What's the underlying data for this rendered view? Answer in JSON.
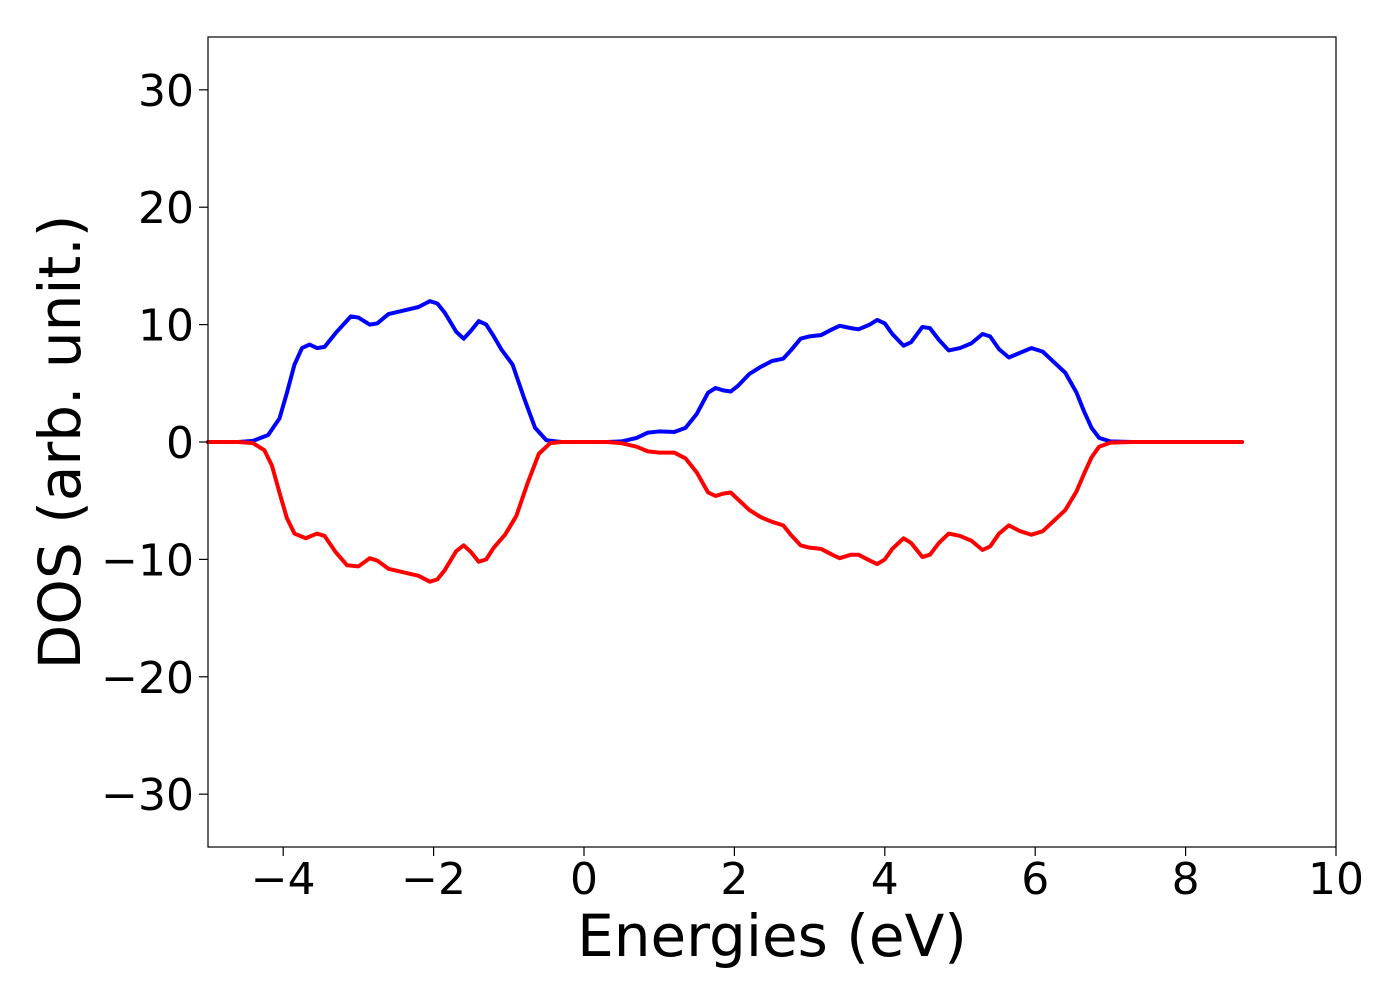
{
  "chart_data": {
    "type": "line",
    "xlabel": "Energies (eV)",
    "ylabel": "DOS (arb. unit.)",
    "xlim": [
      -5,
      10
    ],
    "ylim": [
      -34.5,
      34.5
    ],
    "xticks": [
      -4,
      -2,
      0,
      2,
      4,
      6,
      8,
      10
    ],
    "xtick_labels": [
      "−4",
      "−2",
      "0",
      "2",
      "4",
      "6",
      "8",
      "10"
    ],
    "yticks": [
      30,
      20,
      10,
      0,
      -10,
      -20,
      -30
    ],
    "ytick_labels": [
      "30",
      "20",
      "10",
      "0",
      "−10",
      "−20",
      "−30"
    ],
    "grid": false,
    "legend": "none",
    "series": [
      {
        "color": "#0000ff",
        "points": [
          [
            -5.0,
            0
          ],
          [
            -4.6,
            0
          ],
          [
            -4.4,
            0.1
          ],
          [
            -4.2,
            0.6
          ],
          [
            -4.05,
            2.0
          ],
          [
            -3.95,
            4.2
          ],
          [
            -3.85,
            6.6
          ],
          [
            -3.75,
            8.0
          ],
          [
            -3.65,
            8.3
          ],
          [
            -3.55,
            8.0
          ],
          [
            -3.45,
            8.1
          ],
          [
            -3.3,
            9.3
          ],
          [
            -3.1,
            10.7
          ],
          [
            -3.0,
            10.6
          ],
          [
            -2.85,
            10.0
          ],
          [
            -2.75,
            10.1
          ],
          [
            -2.6,
            10.9
          ],
          [
            -2.4,
            11.2
          ],
          [
            -2.2,
            11.5
          ],
          [
            -2.05,
            12.0
          ],
          [
            -1.95,
            11.8
          ],
          [
            -1.85,
            11.0
          ],
          [
            -1.7,
            9.4
          ],
          [
            -1.6,
            8.8
          ],
          [
            -1.5,
            9.5
          ],
          [
            -1.4,
            10.3
          ],
          [
            -1.3,
            10.0
          ],
          [
            -1.2,
            9.0
          ],
          [
            -1.1,
            7.9
          ],
          [
            -0.95,
            6.6
          ],
          [
            -0.8,
            3.8
          ],
          [
            -0.65,
            1.2
          ],
          [
            -0.5,
            0.15
          ],
          [
            -0.3,
            0
          ],
          [
            0.3,
            0
          ],
          [
            0.5,
            0.05
          ],
          [
            0.7,
            0.35
          ],
          [
            0.85,
            0.8
          ],
          [
            1.0,
            0.9
          ],
          [
            1.2,
            0.85
          ],
          [
            1.35,
            1.2
          ],
          [
            1.5,
            2.4
          ],
          [
            1.65,
            4.2
          ],
          [
            1.75,
            4.6
          ],
          [
            1.85,
            4.4
          ],
          [
            1.95,
            4.3
          ],
          [
            2.05,
            4.8
          ],
          [
            2.2,
            5.8
          ],
          [
            2.35,
            6.4
          ],
          [
            2.5,
            6.9
          ],
          [
            2.65,
            7.1
          ],
          [
            2.75,
            7.8
          ],
          [
            2.88,
            8.8
          ],
          [
            3.0,
            9.0
          ],
          [
            3.15,
            9.1
          ],
          [
            3.3,
            9.6
          ],
          [
            3.4,
            9.9
          ],
          [
            3.55,
            9.7
          ],
          [
            3.65,
            9.6
          ],
          [
            3.8,
            10.0
          ],
          [
            3.9,
            10.4
          ],
          [
            4.0,
            10.1
          ],
          [
            4.1,
            9.2
          ],
          [
            4.25,
            8.2
          ],
          [
            4.35,
            8.5
          ],
          [
            4.5,
            9.8
          ],
          [
            4.6,
            9.7
          ],
          [
            4.72,
            8.7
          ],
          [
            4.85,
            7.8
          ],
          [
            5.0,
            8.0
          ],
          [
            5.15,
            8.4
          ],
          [
            5.3,
            9.2
          ],
          [
            5.4,
            9.0
          ],
          [
            5.52,
            7.9
          ],
          [
            5.65,
            7.2
          ],
          [
            5.8,
            7.6
          ],
          [
            5.95,
            8.0
          ],
          [
            6.1,
            7.7
          ],
          [
            6.25,
            6.8
          ],
          [
            6.4,
            5.9
          ],
          [
            6.55,
            4.2
          ],
          [
            6.65,
            2.6
          ],
          [
            6.75,
            1.2
          ],
          [
            6.85,
            0.35
          ],
          [
            7.0,
            0.05
          ],
          [
            7.3,
            0
          ],
          [
            8.75,
            0
          ]
        ]
      },
      {
        "color": "#ff0000",
        "points": [
          [
            -5.0,
            0
          ],
          [
            -4.6,
            0
          ],
          [
            -4.4,
            -0.1
          ],
          [
            -4.25,
            -0.7
          ],
          [
            -4.15,
            -2.0
          ],
          [
            -4.05,
            -4.3
          ],
          [
            -3.95,
            -6.5
          ],
          [
            -3.85,
            -7.8
          ],
          [
            -3.7,
            -8.2
          ],
          [
            -3.55,
            -7.8
          ],
          [
            -3.45,
            -8.0
          ],
          [
            -3.3,
            -9.4
          ],
          [
            -3.15,
            -10.5
          ],
          [
            -3.0,
            -10.6
          ],
          [
            -2.85,
            -9.9
          ],
          [
            -2.75,
            -10.1
          ],
          [
            -2.6,
            -10.8
          ],
          [
            -2.4,
            -11.1
          ],
          [
            -2.2,
            -11.4
          ],
          [
            -2.05,
            -11.9
          ],
          [
            -1.95,
            -11.7
          ],
          [
            -1.85,
            -10.9
          ],
          [
            -1.7,
            -9.3
          ],
          [
            -1.6,
            -8.8
          ],
          [
            -1.5,
            -9.4
          ],
          [
            -1.4,
            -10.2
          ],
          [
            -1.3,
            -10.0
          ],
          [
            -1.2,
            -9.0
          ],
          [
            -1.05,
            -7.9
          ],
          [
            -0.9,
            -6.3
          ],
          [
            -0.75,
            -3.5
          ],
          [
            -0.6,
            -1.0
          ],
          [
            -0.45,
            -0.1
          ],
          [
            -0.3,
            0
          ],
          [
            0.3,
            0
          ],
          [
            0.5,
            -0.1
          ],
          [
            0.7,
            -0.4
          ],
          [
            0.85,
            -0.8
          ],
          [
            1.0,
            -0.9
          ],
          [
            1.2,
            -0.9
          ],
          [
            1.35,
            -1.4
          ],
          [
            1.5,
            -2.6
          ],
          [
            1.65,
            -4.3
          ],
          [
            1.75,
            -4.6
          ],
          [
            1.85,
            -4.4
          ],
          [
            1.95,
            -4.3
          ],
          [
            2.05,
            -4.9
          ],
          [
            2.2,
            -5.8
          ],
          [
            2.35,
            -6.4
          ],
          [
            2.5,
            -6.8
          ],
          [
            2.65,
            -7.1
          ],
          [
            2.75,
            -7.9
          ],
          [
            2.88,
            -8.8
          ],
          [
            3.0,
            -9.0
          ],
          [
            3.15,
            -9.1
          ],
          [
            3.3,
            -9.6
          ],
          [
            3.4,
            -9.9
          ],
          [
            3.55,
            -9.6
          ],
          [
            3.65,
            -9.6
          ],
          [
            3.8,
            -10.1
          ],
          [
            3.9,
            -10.4
          ],
          [
            4.0,
            -10.0
          ],
          [
            4.1,
            -9.1
          ],
          [
            4.25,
            -8.2
          ],
          [
            4.35,
            -8.6
          ],
          [
            4.5,
            -9.8
          ],
          [
            4.6,
            -9.6
          ],
          [
            4.72,
            -8.6
          ],
          [
            4.85,
            -7.8
          ],
          [
            5.0,
            -8.0
          ],
          [
            5.15,
            -8.4
          ],
          [
            5.3,
            -9.2
          ],
          [
            5.4,
            -8.9
          ],
          [
            5.52,
            -7.8
          ],
          [
            5.65,
            -7.1
          ],
          [
            5.8,
            -7.6
          ],
          [
            5.95,
            -7.9
          ],
          [
            6.1,
            -7.6
          ],
          [
            6.25,
            -6.7
          ],
          [
            6.4,
            -5.8
          ],
          [
            6.55,
            -4.2
          ],
          [
            6.65,
            -2.7
          ],
          [
            6.75,
            -1.3
          ],
          [
            6.85,
            -0.4
          ],
          [
            7.0,
            -0.05
          ],
          [
            7.3,
            0
          ],
          [
            8.75,
            0
          ]
        ]
      }
    ]
  }
}
